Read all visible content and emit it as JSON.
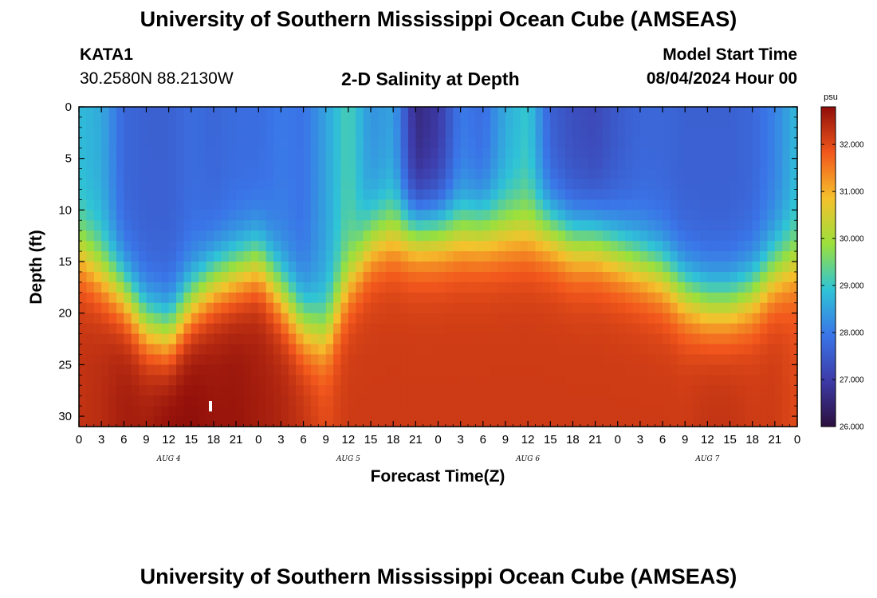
{
  "header": {
    "title": "University of Southern Mississippi Ocean Cube (AMSEAS)",
    "station": "KATA1",
    "coords": "30.2580N  88.2130W",
    "chart_heading": "2-D Salinity at Depth",
    "model_label": "Model Start Time",
    "model_time": "08/04/2024 Hour 00"
  },
  "footer": {
    "title": "University of Southern Mississippi Ocean Cube (AMSEAS)"
  },
  "colors": {
    "stops": [
      "#2b0f3d",
      "#3d3ba8",
      "#3a75e8",
      "#2fc4d6",
      "#9be03c",
      "#f5c12c",
      "#f2571c",
      "#8f0e0a"
    ]
  },
  "chart_data": {
    "type": "heatmap",
    "title": "2-D Salinity at Depth",
    "xlabel": "Forecast Time(Z)",
    "ylabel": "Depth (ft)",
    "x_range_hours": [
      0,
      96
    ],
    "ylim": [
      31,
      0
    ],
    "x_tick_labels": [
      "0",
      "3",
      "6",
      "9",
      "12",
      "15",
      "18",
      "21",
      "0",
      "3",
      "6",
      "9",
      "12",
      "15",
      "18",
      "21",
      "0",
      "3",
      "6",
      "9",
      "12",
      "15",
      "18",
      "21",
      "0",
      "3",
      "6",
      "9",
      "12",
      "15",
      "18",
      "21",
      "0"
    ],
    "y_ticks": [
      0,
      5,
      10,
      15,
      20,
      25,
      30
    ],
    "day_labels": [
      {
        "label": "AUG 4",
        "hour": 12
      },
      {
        "label": "AUG 5",
        "hour": 36
      },
      {
        "label": "AUG 6",
        "hour": 60
      },
      {
        "label": "AUG 7",
        "hour": 84
      }
    ],
    "colorbar": {
      "unit": "psu",
      "min": 26.0,
      "max": 32.8,
      "tick_labels": [
        "32.000",
        "31.000",
        "30.000",
        "29.000",
        "28.000",
        "27.000",
        "26.000"
      ],
      "tick_values": [
        32,
        31,
        30,
        29,
        28,
        27,
        26
      ]
    },
    "profile_hours": [
      0,
      3,
      6,
      9,
      12,
      15,
      18,
      21,
      24,
      27,
      30,
      33,
      36,
      39,
      42,
      45,
      48,
      51,
      54,
      57,
      60,
      63,
      66,
      69,
      72,
      75,
      78,
      81,
      84,
      87,
      90,
      93,
      96
    ],
    "halocline_depth_ft": [
      14,
      16,
      18,
      21,
      22,
      19,
      17,
      16,
      15,
      18,
      21,
      22,
      17,
      13,
      12,
      12,
      12,
      12,
      12,
      12,
      12,
      12,
      13,
      13,
      14,
      15,
      16,
      18,
      19,
      19,
      18,
      16,
      15
    ],
    "surface_salinity_psu": [
      28.8,
      28.6,
      27.7,
      27.6,
      27.6,
      27.8,
      27.7,
      27.8,
      27.8,
      28.0,
      27.9,
      28.5,
      29.2,
      28.3,
      28.5,
      26.6,
      26.9,
      28.0,
      27.8,
      28.6,
      29.0,
      27.6,
      27.3,
      27.2,
      27.5,
      27.7,
      27.7,
      27.6,
      27.6,
      27.6,
      27.7,
      28.1,
      28.8
    ],
    "bottom_salinity_psu": [
      32.3,
      32.4,
      32.6,
      32.6,
      32.8,
      32.8,
      32.7,
      32.7,
      32.6,
      32.5,
      32.3,
      32.0,
      32.2,
      32.2,
      32.2,
      32.2,
      32.2,
      32.2,
      32.2,
      32.2,
      32.2,
      32.2,
      32.2,
      32.2,
      32.2,
      32.2,
      32.2,
      32.2,
      32.3,
      32.3,
      32.2,
      32.2,
      32.0
    ]
  }
}
